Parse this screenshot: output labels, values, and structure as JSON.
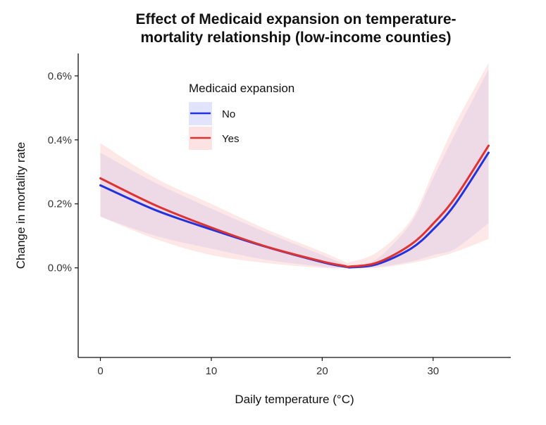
{
  "chart_data": {
    "type": "line",
    "title_lines": [
      "Effect of Medicaid expansion on temperature-",
      "mortality relationship (low-income counties)"
    ],
    "xlabel": "Daily temperature (°C)",
    "ylabel": "Change in mortality rate",
    "xlim": [
      -2,
      37
    ],
    "ylim": [
      -0.28,
      0.67
    ],
    "x_ticks": [
      0,
      10,
      20,
      30
    ],
    "x_tick_labels": [
      "0",
      "10",
      "20",
      "30"
    ],
    "y_ticks": [
      0,
      0.2,
      0.4,
      0.6
    ],
    "y_tick_labels": [
      "0.0%",
      "0.2%",
      "0.4%",
      "0.6%"
    ],
    "grid": false,
    "legend": {
      "title": "Medicaid expansion",
      "position": "top-center",
      "entries": [
        "No",
        "Yes"
      ]
    },
    "series": [
      {
        "name": "No",
        "color": "#2233dd",
        "band_color": "#c8cdfa",
        "x": [
          0,
          5,
          10,
          15,
          20,
          22,
          22.8,
          25,
          28,
          30,
          32,
          35
        ],
        "y": [
          0.258,
          0.18,
          0.12,
          0.065,
          0.018,
          0.004,
          0.002,
          0.012,
          0.06,
          0.12,
          0.2,
          0.36
        ],
        "lower": [
          0.16,
          0.1,
          0.06,
          0.025,
          0.004,
          0.0,
          0.0,
          0.003,
          0.02,
          0.04,
          0.06,
          0.14
        ],
        "upper": [
          0.36,
          0.265,
          0.185,
          0.11,
          0.04,
          0.012,
          0.008,
          0.03,
          0.14,
          0.28,
          0.42,
          0.62
        ]
      },
      {
        "name": "Yes",
        "color": "#dd3333",
        "band_color": "#fbd3d3",
        "x": [
          0,
          5,
          10,
          15,
          20,
          22,
          22.5,
          25,
          28,
          30,
          32,
          35
        ],
        "y": [
          0.28,
          0.195,
          0.126,
          0.066,
          0.02,
          0.006,
          0.004,
          0.017,
          0.073,
          0.138,
          0.22,
          0.382
        ],
        "lower": [
          0.16,
          0.09,
          0.04,
          0.015,
          0.0,
          0.0,
          0.0,
          0.0,
          0.015,
          0.03,
          0.05,
          0.09
        ],
        "upper": [
          0.39,
          0.28,
          0.2,
          0.12,
          0.05,
          0.02,
          0.018,
          0.05,
          0.15,
          0.3,
          0.45,
          0.64
        ]
      }
    ]
  }
}
